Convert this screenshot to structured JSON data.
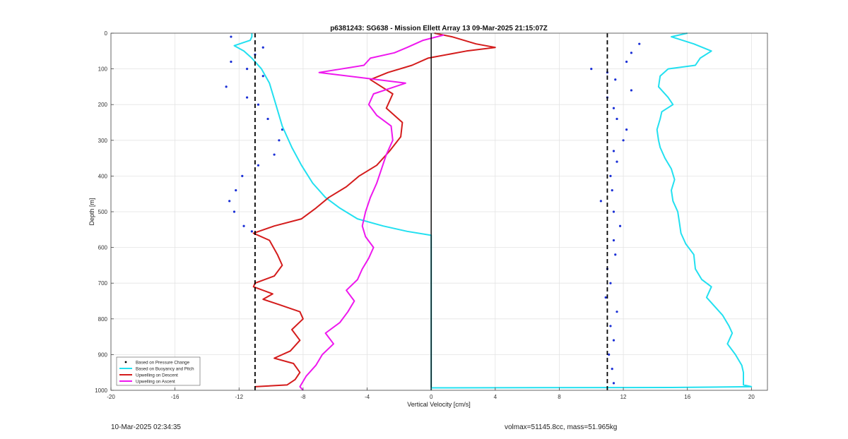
{
  "chart_data": {
    "type": "line",
    "title": "p6381243: SG638 - Mission Ellett Array 13 09-Mar-2025 21:15:07Z",
    "xlabel": "Vertical Velocity [cm/s]",
    "ylabel": "Depth [m]",
    "xlim": [
      -20,
      21
    ],
    "ylim": [
      1000,
      0
    ],
    "y_reversed": true,
    "grid": true,
    "legend_placement": "bottom-left",
    "x_ticks": [
      -20,
      -16,
      -12,
      -8,
      -4,
      0,
      4,
      8,
      12,
      16,
      20
    ],
    "y_ticks": [
      0,
      100,
      200,
      300,
      400,
      500,
      600,
      700,
      800,
      900,
      1000
    ],
    "reference_lines": [
      {
        "x": -11,
        "style": "dashed",
        "color": "#000000"
      },
      {
        "x": 11,
        "style": "dashed",
        "color": "#000000"
      },
      {
        "x": 0,
        "style": "solid",
        "color": "#000000"
      }
    ],
    "series": [
      {
        "name": "Based on Pressure Change",
        "color": "#1a2fd6",
        "marker": "dot",
        "branches": [
          {
            "points": [
              [
                -12.5,
                10
              ],
              [
                -10.5,
                40
              ],
              [
                -11,
                60
              ],
              [
                -12.5,
                80
              ],
              [
                -11.5,
                100
              ],
              [
                -10.5,
                120
              ],
              [
                -12.8,
                150
              ],
              [
                -11.5,
                180
              ],
              [
                -10.8,
                200
              ],
              [
                -10.2,
                240
              ],
              [
                -9.3,
                270
              ],
              [
                -9.5,
                300
              ],
              [
                -9.8,
                340
              ],
              [
                -10.8,
                370
              ],
              [
                -11.8,
                400
              ],
              [
                -12.2,
                440
              ],
              [
                -12.6,
                470
              ],
              [
                -12.3,
                500
              ],
              [
                -11.7,
                540
              ],
              [
                -11.2,
                555
              ]
            ]
          },
          {
            "points": [
              [
                13,
                30
              ],
              [
                12.5,
                55
              ],
              [
                12.2,
                80
              ],
              [
                10,
                100
              ],
              [
                11,
                110
              ],
              [
                11.5,
                130
              ],
              [
                12.5,
                160
              ],
              [
                11,
                180
              ],
              [
                11.4,
                210
              ],
              [
                11.6,
                240
              ],
              [
                12.2,
                270
              ],
              [
                12,
                300
              ],
              [
                11.4,
                330
              ],
              [
                11.6,
                360
              ],
              [
                11.2,
                400
              ],
              [
                11.3,
                440
              ],
              [
                10.6,
                470
              ],
              [
                11.4,
                500
              ],
              [
                11.8,
                540
              ],
              [
                11.4,
                580
              ],
              [
                11.5,
                620
              ],
              [
                11,
                660
              ],
              [
                11.2,
                700
              ],
              [
                10.9,
                740
              ],
              [
                11.6,
                780
              ],
              [
                11.2,
                820
              ],
              [
                11.4,
                860
              ],
              [
                11.1,
                900
              ],
              [
                11.3,
                940
              ],
              [
                11.4,
                980
              ]
            ]
          }
        ]
      },
      {
        "name": "Based on Buoyancy and Pitch",
        "color": "#22e0f0",
        "branches": [
          {
            "points": [
              [
                0,
                1000
              ],
              [
                0,
                980
              ],
              [
                0,
                900
              ],
              [
                0,
                800
              ],
              [
                0,
                700
              ],
              [
                0,
                600
              ],
              [
                0,
                566
              ],
              [
                -1.5,
                555
              ],
              [
                -3,
                540
              ],
              [
                -4.6,
                520
              ],
              [
                -5.7,
                490
              ],
              [
                -6.6,
                460
              ],
              [
                -7.4,
                420
              ],
              [
                -8.1,
                370
              ],
              [
                -8.7,
                320
              ],
              [
                -9.3,
                260
              ],
              [
                -9.7,
                200
              ],
              [
                -10.1,
                140
              ],
              [
                -10.6,
                100
              ],
              [
                -11.2,
                70
              ],
              [
                -11.7,
                50
              ],
              [
                -12.3,
                35
              ],
              [
                -11.3,
                20
              ],
              [
                -11.2,
                10
              ],
              [
                -11.2,
                0
              ]
            ]
          },
          {
            "points": [
              [
                0,
                993
              ],
              [
                15,
                992
              ],
              [
                20,
                990
              ],
              [
                19.5,
                985
              ],
              [
                19.5,
                950
              ],
              [
                19.4,
                930
              ],
              [
                19,
                900
              ],
              [
                18.5,
                870
              ],
              [
                18.8,
                840
              ],
              [
                18.6,
                820
              ],
              [
                18.2,
                790
              ],
              [
                17.8,
                770
              ],
              [
                17.2,
                740
              ],
              [
                17.5,
                710
              ],
              [
                16.9,
                690
              ],
              [
                16.5,
                660
              ],
              [
                16.4,
                620
              ],
              [
                15.9,
                590
              ],
              [
                15.6,
                560
              ],
              [
                15.5,
                530
              ],
              [
                15.4,
                500
              ],
              [
                15.1,
                470
              ],
              [
                15,
                440
              ],
              [
                15.2,
                410
              ],
              [
                15,
                380
              ],
              [
                14.6,
                350
              ],
              [
                14.3,
                320
              ],
              [
                14.2,
                300
              ],
              [
                14.1,
                270
              ],
              [
                14.3,
                240
              ],
              [
                14.4,
                220
              ],
              [
                15.1,
                200
              ],
              [
                14.8,
                180
              ],
              [
                14.2,
                150
              ],
              [
                14.3,
                120
              ],
              [
                14.8,
                100
              ],
              [
                16.5,
                90
              ],
              [
                16.8,
                70
              ],
              [
                17.5,
                50
              ],
              [
                16.4,
                30
              ],
              [
                15,
                10
              ],
              [
                16,
                0
              ]
            ]
          }
        ]
      },
      {
        "name": "Upwelling on Descent",
        "color": "#d41c1c",
        "points": [
          [
            -11,
            990
          ],
          [
            -9,
            985
          ],
          [
            -8.5,
            970
          ],
          [
            -8.2,
            950
          ],
          [
            -8.6,
            925
          ],
          [
            -9.8,
            910
          ],
          [
            -8.8,
            890
          ],
          [
            -8.2,
            860
          ],
          [
            -8.7,
            830
          ],
          [
            -8,
            800
          ],
          [
            -8.2,
            780
          ],
          [
            -9.5,
            760
          ],
          [
            -10.5,
            745
          ],
          [
            -9.9,
            730
          ],
          [
            -11.1,
            710
          ],
          [
            -11,
            700
          ],
          [
            -9.8,
            680
          ],
          [
            -9.3,
            650
          ],
          [
            -9.6,
            620
          ],
          [
            -10.1,
            580
          ],
          [
            -11.1,
            560
          ],
          [
            -9.8,
            540
          ],
          [
            -8.1,
            520
          ],
          [
            -7.2,
            490
          ],
          [
            -6.4,
            460
          ],
          [
            -5.3,
            430
          ],
          [
            -4.5,
            400
          ],
          [
            -3.4,
            370
          ],
          [
            -2.6,
            330
          ],
          [
            -1.9,
            290
          ],
          [
            -1.8,
            250
          ],
          [
            -2.8,
            210
          ],
          [
            -2.4,
            170
          ],
          [
            -3.8,
            130
          ],
          [
            -2.7,
            110
          ],
          [
            -1.2,
            90
          ],
          [
            -0.2,
            70
          ],
          [
            2.2,
            50
          ],
          [
            4,
            40
          ],
          [
            2.8,
            30
          ],
          [
            1.3,
            10
          ],
          [
            0.2,
            0
          ]
        ]
      },
      {
        "name": "Upwelling on Ascent",
        "color": "#ee18ee",
        "points": [
          [
            -8,
            1000
          ],
          [
            -8.2,
            990
          ],
          [
            -7.8,
            960
          ],
          [
            -7.2,
            930
          ],
          [
            -6.8,
            900
          ],
          [
            -6.1,
            870
          ],
          [
            -6.6,
            840
          ],
          [
            -5.7,
            810
          ],
          [
            -5.2,
            780
          ],
          [
            -4.8,
            750
          ],
          [
            -5.3,
            720
          ],
          [
            -4.6,
            690
          ],
          [
            -4.3,
            660
          ],
          [
            -3.9,
            630
          ],
          [
            -3.6,
            600
          ],
          [
            -4.1,
            570
          ],
          [
            -4.3,
            540
          ],
          [
            -4.1,
            500
          ],
          [
            -3.8,
            460
          ],
          [
            -3.4,
            420
          ],
          [
            -3.1,
            380
          ],
          [
            -2.8,
            340
          ],
          [
            -2.4,
            300
          ],
          [
            -2.5,
            260
          ],
          [
            -3.4,
            230
          ],
          [
            -3.9,
            200
          ],
          [
            -3.6,
            170
          ],
          [
            -1.6,
            140
          ],
          [
            -7,
            110
          ],
          [
            -4.2,
            90
          ],
          [
            -3.8,
            70
          ],
          [
            -2.3,
            55
          ],
          [
            -1.5,
            40
          ],
          [
            -0.5,
            20
          ],
          [
            0.8,
            5
          ]
        ]
      }
    ],
    "legend": [
      {
        "label": "Based on Pressure Change",
        "color": "#1a2fd6",
        "kind": "dot"
      },
      {
        "label": "Based on Buoyancy and Pitch",
        "color": "#22e0f0",
        "kind": "line"
      },
      {
        "label": "Upwelling on Descent",
        "color": "#d41c1c",
        "kind": "line"
      },
      {
        "label": "Upwelling on Ascent",
        "color": "#ee18ee",
        "kind": "line"
      }
    ]
  },
  "footer": {
    "timestamp": "10-Mar-2025 02:34:35",
    "volmax_mass": "volmax=51145.8cc, mass=51.965kg"
  }
}
